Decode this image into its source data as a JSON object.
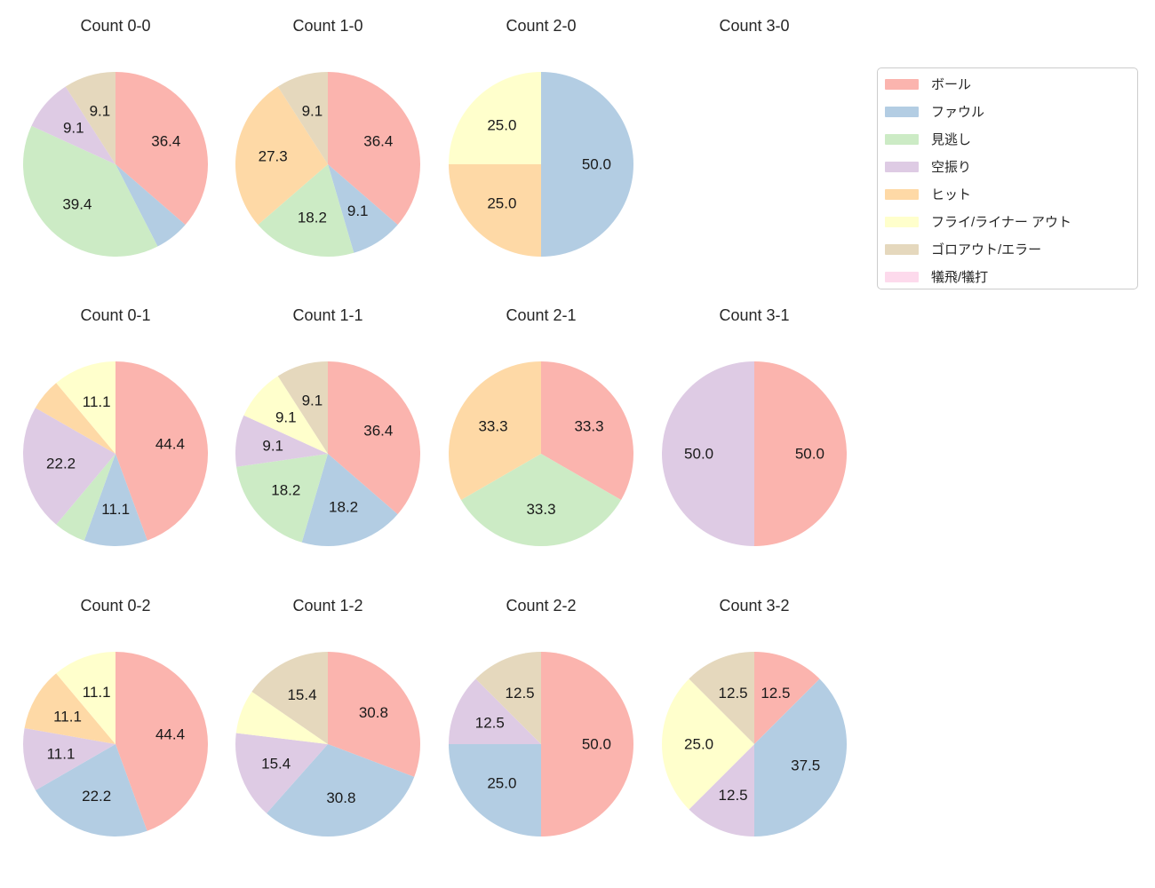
{
  "figure": {
    "background": "#ffffff",
    "text_color": "#262626"
  },
  "legend": {
    "items": [
      {
        "label": "ボール",
        "color": "#fbb4ae"
      },
      {
        "label": "ファウル",
        "color": "#b3cde3"
      },
      {
        "label": "見逃し",
        "color": "#ccebc5"
      },
      {
        "label": "空振り",
        "color": "#decbe4"
      },
      {
        "label": "ヒット",
        "color": "#fed9a6"
      },
      {
        "label": "フライ/ライナー アウト",
        "color": "#ffffcc"
      },
      {
        "label": "ゴロアウト/エラー",
        "color": "#e5d8bd"
      },
      {
        "label": "犠飛/犠打",
        "color": "#fddaec"
      }
    ]
  },
  "chart_data": [
    {
      "type": "pie",
      "title": "Count 0-0",
      "start_angle_deg": 90,
      "direction": "clockwise",
      "radius_px": 104,
      "pct_distance": 0.6,
      "slices": [
        {
          "label": "ボール",
          "value": 36.4,
          "color": "#fbb4ae",
          "pct_text": "36.4"
        },
        {
          "label": "ファウル",
          "value": 6.1,
          "color": "#b3cde3",
          "pct_text": null
        },
        {
          "label": "見逃し",
          "value": 39.4,
          "color": "#ccebc5",
          "pct_text": "39.4"
        },
        {
          "label": "空振り",
          "value": 9.1,
          "color": "#decbe4",
          "pct_text": "9.1"
        },
        {
          "label": "ゴロアウト/エラー",
          "value": 9.1,
          "color": "#e5d8bd",
          "pct_text": "9.1"
        }
      ]
    },
    {
      "type": "pie",
      "title": "Count 1-0",
      "start_angle_deg": 90,
      "direction": "clockwise",
      "radius_px": 104,
      "pct_distance": 0.6,
      "slices": [
        {
          "label": "ボール",
          "value": 36.4,
          "color": "#fbb4ae",
          "pct_text": "36.4"
        },
        {
          "label": "ファウル",
          "value": 9.1,
          "color": "#b3cde3",
          "pct_text": "9.1"
        },
        {
          "label": "見逃し",
          "value": 18.2,
          "color": "#ccebc5",
          "pct_text": "18.2"
        },
        {
          "label": "ヒット",
          "value": 27.3,
          "color": "#fed9a6",
          "pct_text": "27.3"
        },
        {
          "label": "ゴロアウト/エラー",
          "value": 9.1,
          "color": "#e5d8bd",
          "pct_text": "9.1"
        }
      ]
    },
    {
      "type": "pie",
      "title": "Count 2-0",
      "start_angle_deg": 90,
      "direction": "clockwise",
      "radius_px": 104,
      "pct_distance": 0.6,
      "slices": [
        {
          "label": "ファウル",
          "value": 50.0,
          "color": "#b3cde3",
          "pct_text": "50.0"
        },
        {
          "label": "ヒット",
          "value": 25.0,
          "color": "#fed9a6",
          "pct_text": "25.0"
        },
        {
          "label": "フライ/ライナー アウト",
          "value": 25.0,
          "color": "#ffffcc",
          "pct_text": "25.0"
        }
      ]
    },
    {
      "type": "pie",
      "title": "Count 3-0",
      "start_angle_deg": 90,
      "direction": "clockwise",
      "radius_px": 104,
      "pct_distance": 0.6,
      "slices": []
    },
    {
      "type": "pie",
      "title": "Count 0-1",
      "start_angle_deg": 90,
      "direction": "clockwise",
      "radius_px": 104,
      "pct_distance": 0.6,
      "slices": [
        {
          "label": "ボール",
          "value": 44.4,
          "color": "#fbb4ae",
          "pct_text": "44.4"
        },
        {
          "label": "ファウル",
          "value": 11.1,
          "color": "#b3cde3",
          "pct_text": "11.1"
        },
        {
          "label": "見逃し",
          "value": 5.6,
          "color": "#ccebc5",
          "pct_text": null
        },
        {
          "label": "空振り",
          "value": 22.2,
          "color": "#decbe4",
          "pct_text": "22.2"
        },
        {
          "label": "ヒット",
          "value": 5.6,
          "color": "#fed9a6",
          "pct_text": null
        },
        {
          "label": "フライ/ライナー アウト",
          "value": 11.1,
          "color": "#ffffcc",
          "pct_text": "11.1"
        }
      ]
    },
    {
      "type": "pie",
      "title": "Count 1-1",
      "start_angle_deg": 90,
      "direction": "clockwise",
      "radius_px": 104,
      "pct_distance": 0.6,
      "slices": [
        {
          "label": "ボール",
          "value": 36.4,
          "color": "#fbb4ae",
          "pct_text": "36.4"
        },
        {
          "label": "ファウル",
          "value": 18.2,
          "color": "#b3cde3",
          "pct_text": "18.2"
        },
        {
          "label": "見逃し",
          "value": 18.2,
          "color": "#ccebc5",
          "pct_text": "18.2"
        },
        {
          "label": "空振り",
          "value": 9.1,
          "color": "#decbe4",
          "pct_text": "9.1"
        },
        {
          "label": "フライ/ライナー アウト",
          "value": 9.1,
          "color": "#ffffcc",
          "pct_text": "9.1"
        },
        {
          "label": "ゴロアウト/エラー",
          "value": 9.1,
          "color": "#e5d8bd",
          "pct_text": "9.1"
        }
      ]
    },
    {
      "type": "pie",
      "title": "Count 2-1",
      "start_angle_deg": 90,
      "direction": "clockwise",
      "radius_px": 104,
      "pct_distance": 0.6,
      "slices": [
        {
          "label": "ボール",
          "value": 33.3,
          "color": "#fbb4ae",
          "pct_text": "33.3"
        },
        {
          "label": "見逃し",
          "value": 33.3,
          "color": "#ccebc5",
          "pct_text": "33.3"
        },
        {
          "label": "ヒット",
          "value": 33.3,
          "color": "#fed9a6",
          "pct_text": "33.3"
        }
      ]
    },
    {
      "type": "pie",
      "title": "Count 3-1",
      "start_angle_deg": 90,
      "direction": "clockwise",
      "radius_px": 104,
      "pct_distance": 0.6,
      "slices": [
        {
          "label": "ボール",
          "value": 50.0,
          "color": "#fbb4ae",
          "pct_text": "50.0"
        },
        {
          "label": "空振り",
          "value": 50.0,
          "color": "#decbe4",
          "pct_text": "50.0"
        }
      ]
    },
    {
      "type": "pie",
      "title": "Count 0-2",
      "start_angle_deg": 90,
      "direction": "clockwise",
      "radius_px": 104,
      "pct_distance": 0.6,
      "slices": [
        {
          "label": "ボール",
          "value": 44.4,
          "color": "#fbb4ae",
          "pct_text": "44.4"
        },
        {
          "label": "ファウル",
          "value": 22.2,
          "color": "#b3cde3",
          "pct_text": "22.2"
        },
        {
          "label": "空振り",
          "value": 11.1,
          "color": "#decbe4",
          "pct_text": "11.1"
        },
        {
          "label": "ヒット",
          "value": 11.1,
          "color": "#fed9a6",
          "pct_text": "11.1"
        },
        {
          "label": "フライ/ライナー アウト",
          "value": 11.1,
          "color": "#ffffcc",
          "pct_text": "11.1"
        }
      ]
    },
    {
      "type": "pie",
      "title": "Count 1-2",
      "start_angle_deg": 90,
      "direction": "clockwise",
      "radius_px": 104,
      "pct_distance": 0.6,
      "slices": [
        {
          "label": "ボール",
          "value": 30.8,
          "color": "#fbb4ae",
          "pct_text": "30.8"
        },
        {
          "label": "ファウル",
          "value": 30.8,
          "color": "#b3cde3",
          "pct_text": "30.8"
        },
        {
          "label": "空振り",
          "value": 15.4,
          "color": "#decbe4",
          "pct_text": "15.4"
        },
        {
          "label": "フライ/ライナー アウト",
          "value": 7.7,
          "color": "#ffffcc",
          "pct_text": null
        },
        {
          "label": "ゴロアウト/エラー",
          "value": 15.4,
          "color": "#e5d8bd",
          "pct_text": "15.4"
        }
      ]
    },
    {
      "type": "pie",
      "title": "Count 2-2",
      "start_angle_deg": 90,
      "direction": "clockwise",
      "radius_px": 104,
      "pct_distance": 0.6,
      "slices": [
        {
          "label": "ボール",
          "value": 50.0,
          "color": "#fbb4ae",
          "pct_text": "50.0"
        },
        {
          "label": "ファウル",
          "value": 25.0,
          "color": "#b3cde3",
          "pct_text": "25.0"
        },
        {
          "label": "空振り",
          "value": 12.5,
          "color": "#decbe4",
          "pct_text": "12.5"
        },
        {
          "label": "ゴロアウト/エラー",
          "value": 12.5,
          "color": "#e5d8bd",
          "pct_text": "12.5"
        }
      ]
    },
    {
      "type": "pie",
      "title": "Count 3-2",
      "start_angle_deg": 90,
      "direction": "clockwise",
      "radius_px": 104,
      "pct_distance": 0.6,
      "slices": [
        {
          "label": "ボール",
          "value": 12.5,
          "color": "#fbb4ae",
          "pct_text": "12.5"
        },
        {
          "label": "ファウル",
          "value": 37.5,
          "color": "#b3cde3",
          "pct_text": "37.5"
        },
        {
          "label": "空振り",
          "value": 12.5,
          "color": "#decbe4",
          "pct_text": "12.5"
        },
        {
          "label": "フライ/ライナー アウト",
          "value": 25.0,
          "color": "#ffffcc",
          "pct_text": "25.0"
        },
        {
          "label": "ゴロアウト/エラー",
          "value": 12.5,
          "color": "#e5d8bd",
          "pct_text": "12.5"
        }
      ]
    }
  ]
}
